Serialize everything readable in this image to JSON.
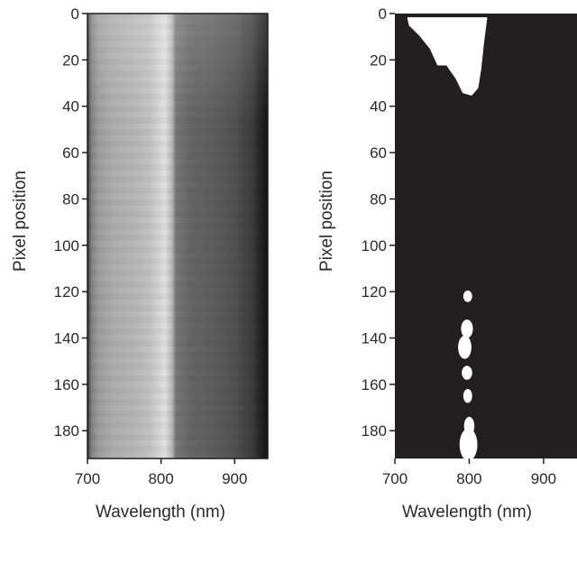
{
  "chart_data": [
    {
      "type": "heatmap",
      "panel": "left",
      "rendering": "grayscale intensity",
      "xlabel": "Wavelength (nm)",
      "ylabel": "Pixel position",
      "xlim": [
        700,
        945
      ],
      "ylim": [
        0,
        192
      ],
      "y_inverted": true,
      "xticks": [
        700,
        800,
        900
      ],
      "yticks": [
        0,
        20,
        40,
        60,
        80,
        100,
        120,
        140,
        160,
        180
      ],
      "intensity_profile": {
        "wavelength_nm": [
          700,
          705,
          715,
          735,
          760,
          785,
          805,
          815,
          820,
          840,
          870,
          900,
          925,
          935,
          945
        ],
        "relative_intensity": [
          0.18,
          0.5,
          0.62,
          0.68,
          0.71,
          0.76,
          0.88,
          0.72,
          0.47,
          0.4,
          0.37,
          0.32,
          0.23,
          0.14,
          0.08
        ]
      }
    },
    {
      "type": "heatmap",
      "panel": "right",
      "rendering": "binary mask",
      "xlabel": "Wavelength (nm)",
      "ylabel": "Pixel position",
      "xlim": [
        700,
        945
      ],
      "ylim": [
        0,
        192
      ],
      "y_inverted": true,
      "xticks": [
        700,
        800,
        900
      ],
      "yticks": [
        0,
        20,
        40,
        60,
        80,
        100,
        120,
        140,
        160,
        180
      ],
      "regions": [
        {
          "polygon": [
            [
              718,
              2
            ],
            [
              823,
              2
            ],
            [
              819,
              12
            ],
            [
              815,
              24
            ],
            [
              811,
              32
            ],
            [
              803,
              35
            ],
            [
              792,
              34
            ],
            [
              783,
              28
            ],
            [
              770,
              22
            ],
            [
              758,
              22
            ],
            [
              748,
              15
            ],
            [
              733,
              9
            ],
            [
              720,
              5
            ]
          ]
        },
        {
          "center": [
            798,
            122
          ],
          "radius": [
            6,
            2.5
          ]
        },
        {
          "center": [
            797,
            136
          ],
          "radius": [
            8,
            4
          ]
        },
        {
          "center": [
            794,
            144
          ],
          "radius": [
            9,
            5
          ]
        },
        {
          "center": [
            797,
            155
          ],
          "radius": [
            7,
            3
          ]
        },
        {
          "center": [
            798,
            165
          ],
          "radius": [
            6,
            3
          ]
        },
        {
          "center": [
            800,
            178
          ],
          "radius": [
            7,
            4
          ]
        },
        {
          "center": [
            799,
            186
          ],
          "radius": [
            12,
            7
          ]
        }
      ]
    }
  ]
}
